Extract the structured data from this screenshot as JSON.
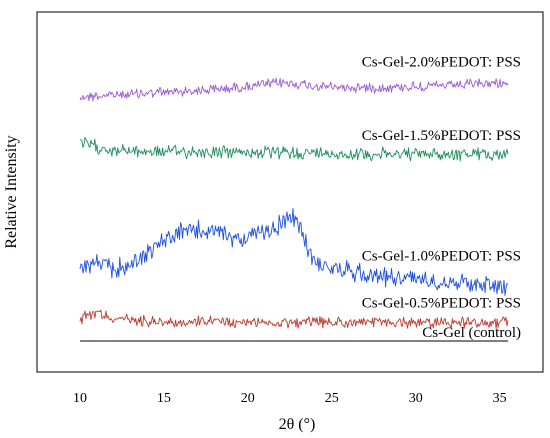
{
  "chart_data": {
    "type": "line",
    "title": "",
    "xlabel": "2θ (°)",
    "ylabel": "Relative Intensity",
    "xlim": [
      10,
      36
    ],
    "x_ticks": [
      "10",
      "15",
      "20",
      "25",
      "30",
      "35"
    ],
    "y_ticks": [],
    "grid": false,
    "legend": "inline labels beside each trace",
    "series": [
      {
        "name": "Cs-Gel-2.0%PEDOT: PSS",
        "color": "#9b59d6",
        "offset": 6.6,
        "x": [
          10,
          12,
          14,
          16,
          18,
          20,
          21,
          22,
          23,
          24,
          26,
          28,
          30,
          32,
          34,
          35.5
        ],
        "y": [
          0.0,
          0.05,
          0.1,
          0.15,
          0.2,
          0.28,
          0.33,
          0.38,
          0.35,
          0.28,
          0.25,
          0.25,
          0.28,
          0.3,
          0.35,
          0.38
        ]
      },
      {
        "name": "Cs-Gel-1.5%PEDOT: PSS",
        "color": "#1e8f5a",
        "offset": 5.0,
        "x": [
          10,
          12,
          14,
          16,
          18,
          20,
          22,
          24,
          26,
          28,
          30,
          32,
          34,
          35.5
        ],
        "y": [
          0.35,
          0.15,
          0.12,
          0.12,
          0.1,
          0.1,
          0.08,
          0.08,
          0.05,
          0.05,
          0.05,
          0.05,
          0.05,
          0.05
        ]
      },
      {
        "name": "Cs-Gel-1.0%PEDOT: PSS",
        "color": "#1f4fe0",
        "offset": 1.6,
        "x": [
          10,
          11,
          12,
          13,
          14,
          15,
          16,
          17,
          18,
          19,
          20,
          21,
          22,
          22.5,
          23,
          23.5,
          24,
          25,
          26,
          28,
          30,
          32,
          34,
          35.5
        ],
        "y": [
          0.4,
          0.5,
          0.35,
          0.45,
          0.8,
          1.1,
          1.35,
          1.4,
          1.35,
          1.2,
          1.2,
          1.35,
          1.55,
          1.75,
          1.6,
          1.0,
          0.55,
          0.35,
          0.3,
          0.15,
          0.1,
          0.0,
          -0.05,
          -0.1
        ]
      },
      {
        "name": "Cs-Gel-0.5%PEDOT: PSS",
        "color": "#c0392b",
        "offset": 0.5,
        "x": [
          10,
          11,
          12,
          14,
          16,
          18,
          20,
          22,
          24,
          26,
          28,
          30,
          32,
          34,
          35.5
        ],
        "y": [
          0.1,
          0.3,
          0.1,
          0.05,
          0.0,
          0.02,
          0.0,
          0.0,
          0.0,
          0.0,
          0.0,
          0.0,
          0.0,
          0.0,
          0.0
        ]
      },
      {
        "name": "Cs-Gel (control)",
        "color": "#000000",
        "offset": 0.0,
        "x": [
          10,
          35.5
        ],
        "y": [
          0,
          0
        ]
      }
    ]
  }
}
